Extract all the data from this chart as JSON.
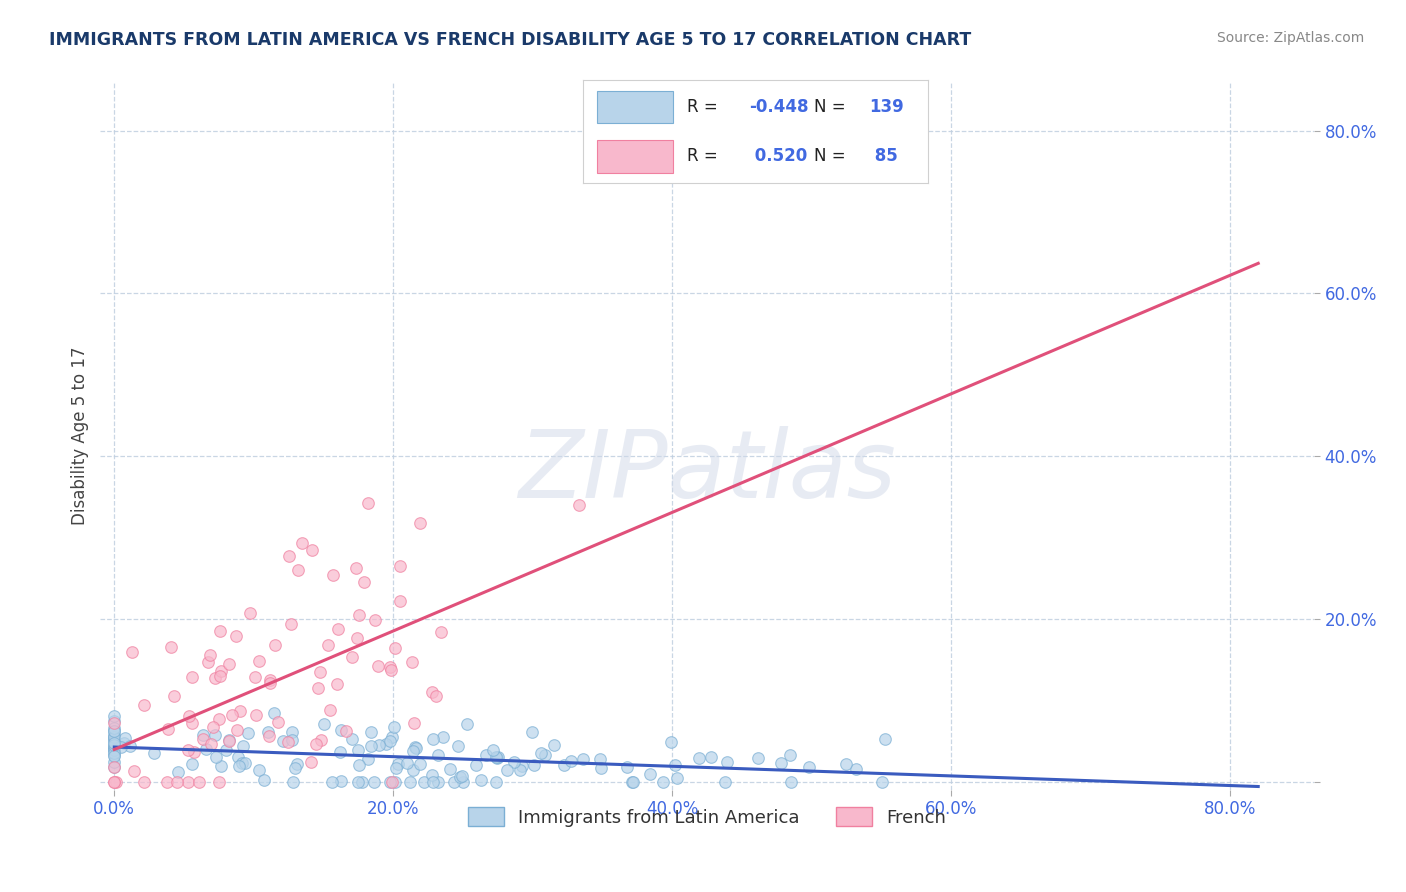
{
  "title": "IMMIGRANTS FROM LATIN AMERICA VS FRENCH DISABILITY AGE 5 TO 17 CORRELATION CHART",
  "source": "Source: ZipAtlas.com",
  "ylabel": "Disability Age 5 to 17",
  "blue_color": "#7bafd4",
  "blue_fill": "#b8d4ea",
  "pink_color": "#f080a0",
  "pink_fill": "#f8b8cc",
  "line_blue": "#3a5bbf",
  "line_pink": "#e0507a",
  "watermark_text": "ZIPatlas",
  "background_color": "#ffffff",
  "grid_color": "#c0cfe0",
  "title_color": "#1a3a6a",
  "tick_color": "#4169E1",
  "blue_r": -0.448,
  "blue_n": 139,
  "pink_r": 0.52,
  "pink_n": 85,
  "legend1_label": "Immigrants from Latin America",
  "legend2_label": "French",
  "xlim": [
    -0.01,
    0.86
  ],
  "ylim": [
    -0.01,
    0.86
  ]
}
